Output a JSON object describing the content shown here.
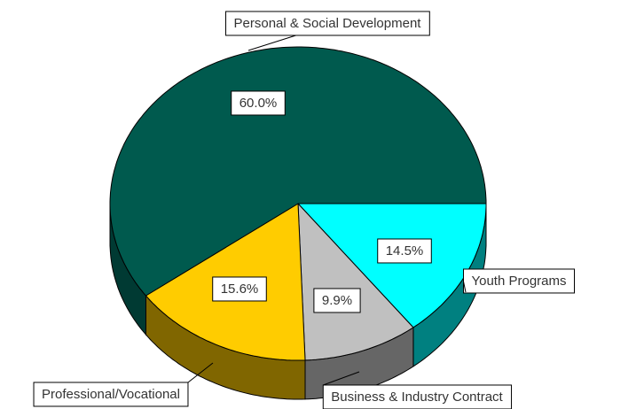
{
  "chart_data": {
    "type": "pie",
    "categories": [
      "Youth Programs",
      "Business & Industry Contract",
      "Professional/Vocational",
      "Personal & Social Development"
    ],
    "values": [
      14.5,
      9.9,
      15.6,
      60.0
    ],
    "value_labels": [
      "14.5%",
      "9.9%",
      "15.6%",
      "60.0%"
    ],
    "colors": [
      "#00ffff",
      "#c0c0c0",
      "#ffcc00",
      "#005a4e"
    ],
    "side_colors": [
      "#008080",
      "#666666",
      "#806600",
      "#003a33"
    ]
  }
}
